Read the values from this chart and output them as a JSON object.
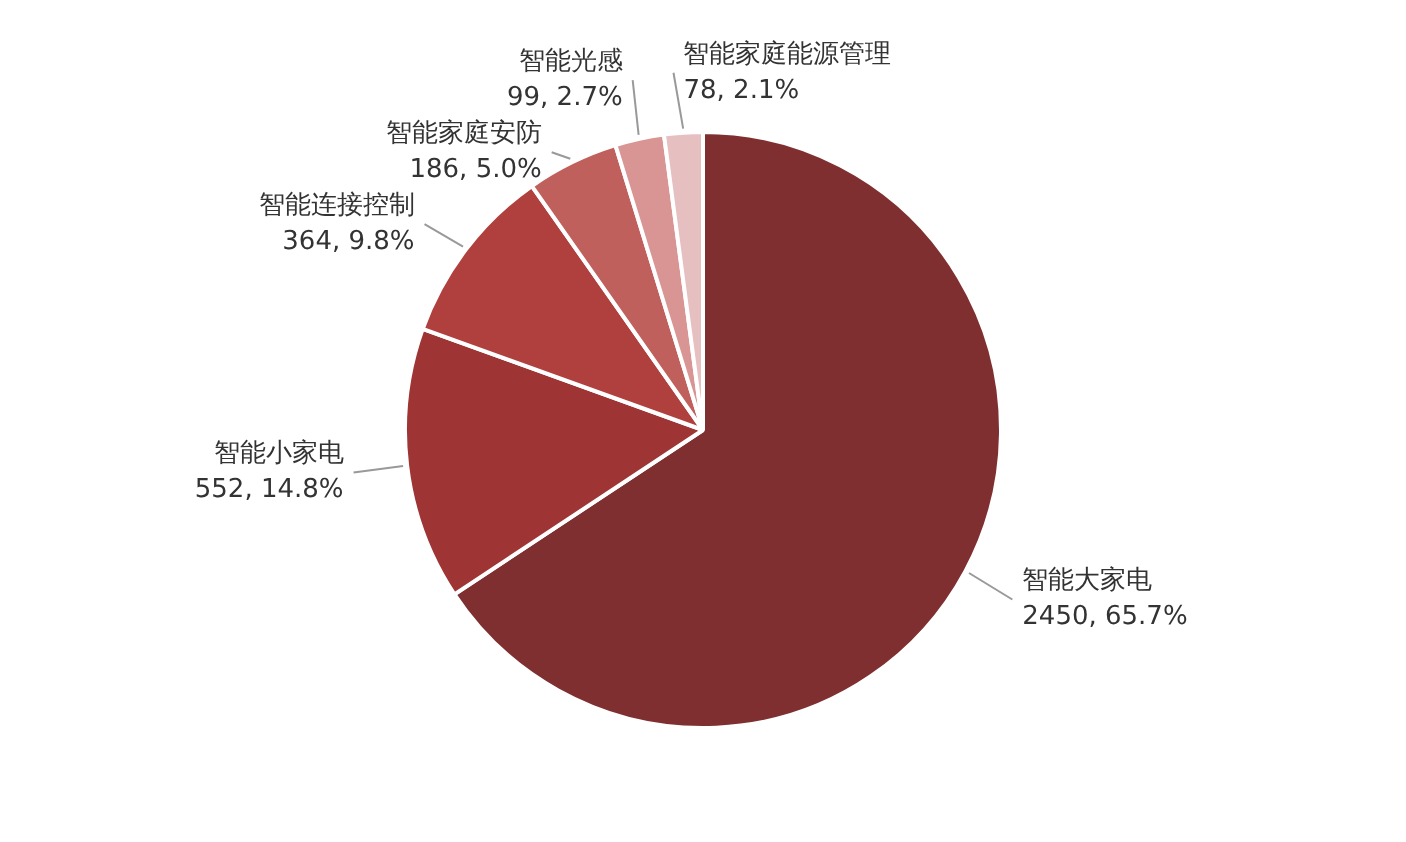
{
  "chart_data": {
    "type": "pie",
    "categories": [
      "智能大家电",
      "智能小家电",
      "智能连接控制",
      "智能家庭安防",
      "智能光感",
      "智能家庭能源管理"
    ],
    "values": [
      2450,
      552,
      364,
      186,
      99,
      78
    ],
    "value_labels": [
      "2450, 65.7%",
      "552, 14.8%",
      "364, 9.8%",
      "186, 5.0%",
      "99, 2.7%",
      "78, 2.1%"
    ],
    "colors": [
      "#7f2f30",
      "#9e3434",
      "#b0403e",
      "#c0605d",
      "#d99594",
      "#e6bfc0"
    ],
    "legend": false
  }
}
